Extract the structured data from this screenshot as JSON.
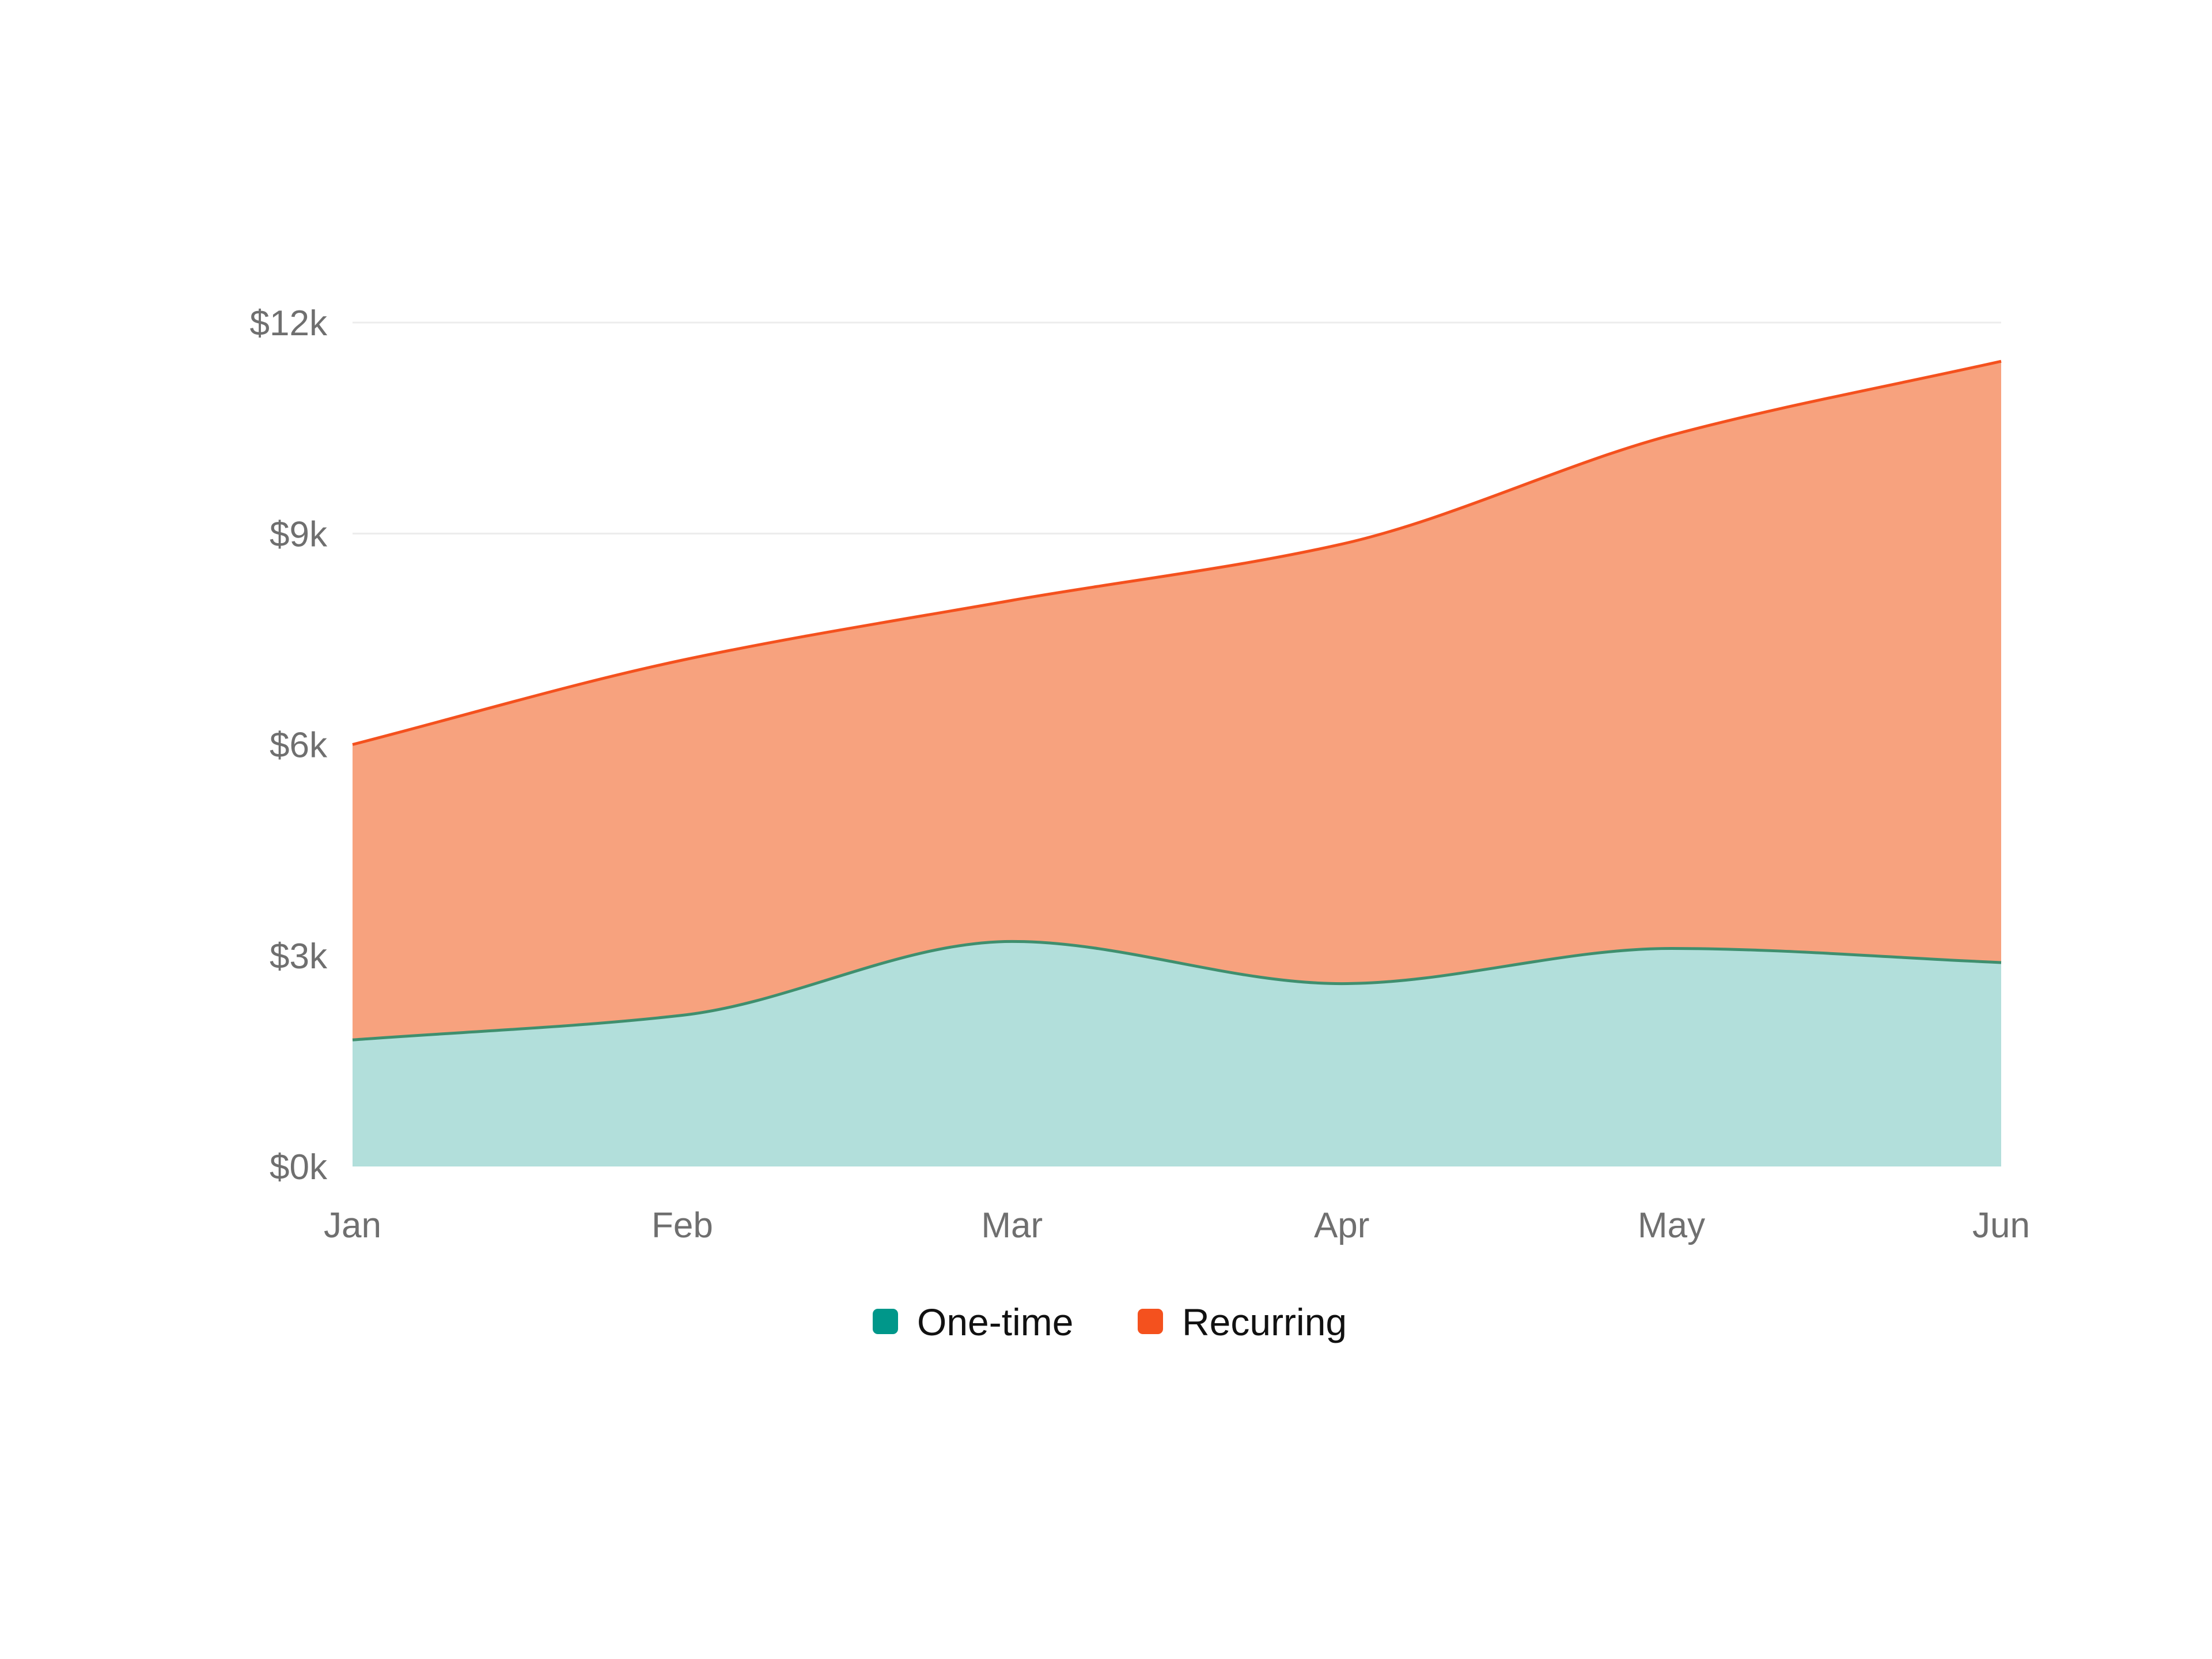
{
  "chart_data": {
    "type": "area",
    "stacked": true,
    "smooth": true,
    "categories": [
      "Jan",
      "Feb",
      "Mar",
      "Apr",
      "May",
      "Jun"
    ],
    "series": [
      {
        "name": "One-time",
        "color": "#00978a",
        "fill": "#b2dfdb",
        "line": "#3f8f6e",
        "values": [
          1800,
          2150,
          3200,
          2600,
          3100,
          2900
        ]
      },
      {
        "name": "Recurring",
        "color": "#f4511e",
        "fill": "#f7a27e",
        "line": "#f4511e",
        "values": [
          4200,
          5050,
          4850,
          6250,
          7300,
          8550
        ]
      }
    ],
    "ylim": [
      0,
      12000
    ],
    "yticks": [
      0,
      3000,
      6000,
      9000,
      12000
    ],
    "ytick_labels": [
      "$0k",
      "$3k",
      "$6k",
      "$9k",
      "$12k"
    ],
    "grid": true,
    "legend_position": "bottom-center"
  }
}
